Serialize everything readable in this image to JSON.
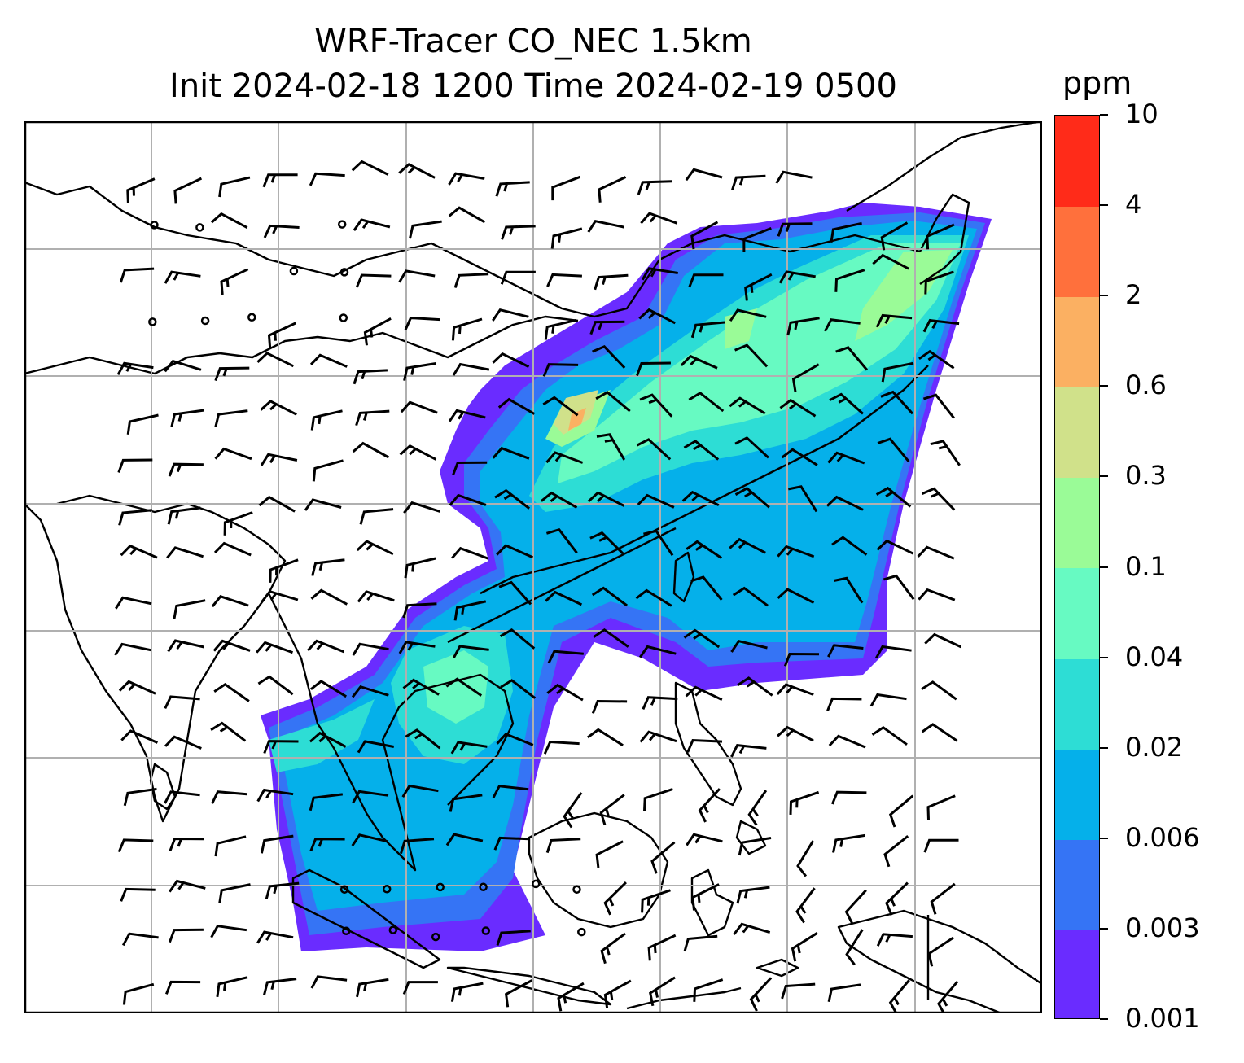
{
  "title": {
    "line1": "WRF-Tracer CO_NEC 1.5km",
    "line2": "Init 2024-02-18 1200 Time 2024-02-19 0500"
  },
  "colorbar": {
    "unit": "ppm",
    "tick_labels": [
      "0.001",
      "0.003",
      "0.006",
      "0.02",
      "0.04",
      "0.1",
      "0.3",
      "0.6",
      "2",
      "4",
      "10"
    ],
    "colors": [
      "#6a2cff",
      "#3574f5",
      "#05b0ea",
      "#2dddd5",
      "#67fac2",
      "#9afb97",
      "#d0e18a",
      "#fbb062",
      "#ff703c",
      "#ff2b19"
    ]
  },
  "map": {
    "gridlines": true,
    "coastline_color": "#000000",
    "grid_color": "#b0b0b0",
    "land_fill": "#ffffff"
  }
}
